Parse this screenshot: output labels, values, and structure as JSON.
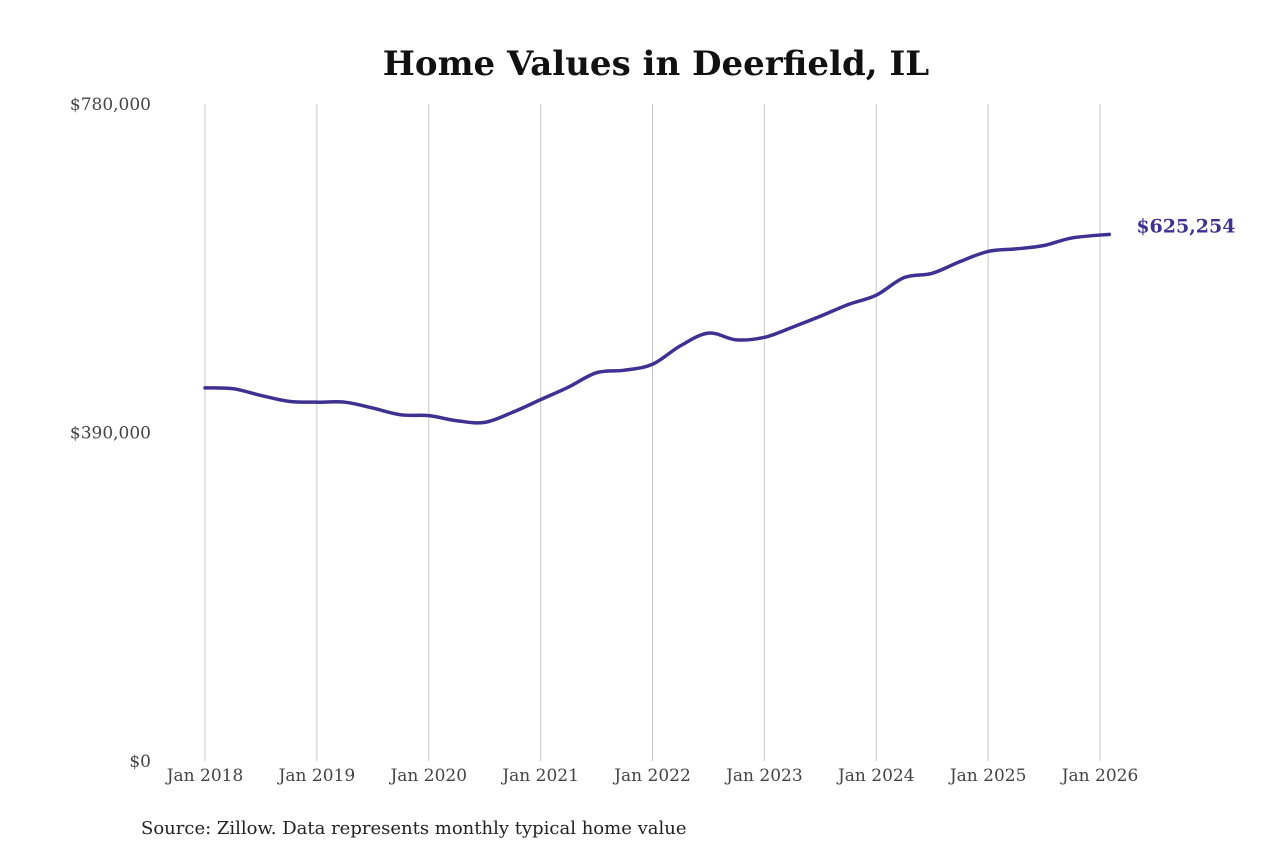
{
  "chart_data": {
    "type": "line",
    "title": "Home Values in Deerfield, IL",
    "source": "Source: Zillow. Data represents monthly typical home value",
    "xlabel": "",
    "ylabel": "",
    "ylim": [
      0,
      780000
    ],
    "y_ticks": [
      {
        "value": 0,
        "label": "$0"
      },
      {
        "value": 390000,
        "label": "$390,000"
      },
      {
        "value": 780000,
        "label": "$780,000"
      }
    ],
    "x_ticks": [
      {
        "value": "2018-01",
        "label": "Jan 2018"
      },
      {
        "value": "2019-01",
        "label": "Jan 2019"
      },
      {
        "value": "2020-01",
        "label": "Jan 2020"
      },
      {
        "value": "2021-01",
        "label": "Jan 2021"
      },
      {
        "value": "2022-01",
        "label": "Jan 2022"
      },
      {
        "value": "2023-01",
        "label": "Jan 2023"
      },
      {
        "value": "2024-01",
        "label": "Jan 2024"
      },
      {
        "value": "2025-01",
        "label": "Jan 2025"
      },
      {
        "value": "2026-01",
        "label": "Jan 2026"
      }
    ],
    "xlim": [
      "2018-01",
      "2026-02"
    ],
    "grid": "vertical",
    "line_color": "#3d3191",
    "end_label": "$625,254",
    "series": [
      {
        "points": [
          [
            "2018-01",
            443000
          ],
          [
            "2018-04",
            442000
          ],
          [
            "2018-07",
            434000
          ],
          [
            "2018-10",
            427000
          ],
          [
            "2019-01",
            426000
          ],
          [
            "2019-04",
            426000
          ],
          [
            "2019-07",
            419000
          ],
          [
            "2019-10",
            411000
          ],
          [
            "2020-01",
            410000
          ],
          [
            "2020-04",
            404000
          ],
          [
            "2020-07",
            402000
          ],
          [
            "2020-10",
            414000
          ],
          [
            "2021-01",
            429000
          ],
          [
            "2021-04",
            444000
          ],
          [
            "2021-07",
            461000
          ],
          [
            "2021-10",
            464000
          ],
          [
            "2022-01",
            471000
          ],
          [
            "2022-04",
            493000
          ],
          [
            "2022-07",
            508000
          ],
          [
            "2022-10",
            500000
          ],
          [
            "2023-01",
            503000
          ],
          [
            "2023-04",
            515000
          ],
          [
            "2023-07",
            528000
          ],
          [
            "2023-10",
            542000
          ],
          [
            "2024-01",
            553000
          ],
          [
            "2024-04",
            574000
          ],
          [
            "2024-07",
            579000
          ],
          [
            "2024-10",
            593000
          ],
          [
            "2025-01",
            605000
          ],
          [
            "2025-04",
            608000
          ],
          [
            "2025-07",
            612000
          ],
          [
            "2025-10",
            621000
          ],
          [
            "2026-02",
            625254
          ]
        ]
      }
    ]
  }
}
